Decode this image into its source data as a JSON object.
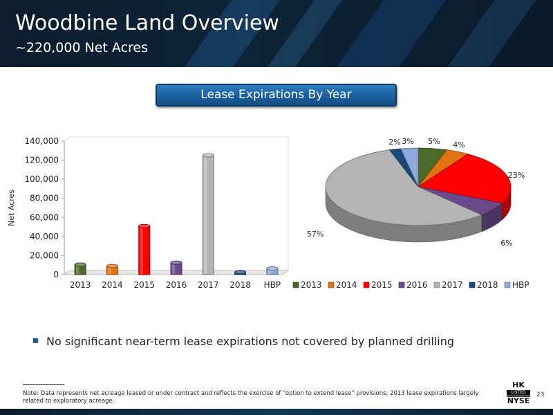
{
  "header": {
    "title": "Woodbine Land Overview",
    "subtitle": "~220,000 Net Acres"
  },
  "banner": {
    "label": "Lease Expirations By Year"
  },
  "chart_data": [
    {
      "type": "bar",
      "categories": [
        "2013",
        "2014",
        "2015",
        "2016",
        "2017",
        "2018",
        "HBP"
      ],
      "values": [
        10500,
        9000,
        51000,
        12500,
        125000,
        2500,
        6500
      ],
      "ylabel": "Net Acres",
      "ylim": [
        0,
        140000
      ],
      "yticks": [
        "0",
        "20,000",
        "40,000",
        "60,000",
        "80,000",
        "100,000",
        "120,000",
        "140,000"
      ],
      "colors": [
        "#4a6a2a",
        "#e0740f",
        "#ff0000",
        "#6a4a8a",
        "#b4b4b4",
        "#1a4a7a",
        "#8faad8"
      ]
    },
    {
      "type": "pie",
      "categories": [
        "2013",
        "2014",
        "2015",
        "2016",
        "2017",
        "2018",
        "HBP"
      ],
      "values": [
        5,
        4,
        23,
        6,
        57,
        2,
        3
      ],
      "labels": [
        "5%",
        "4%",
        "23%",
        "6%",
        "57%",
        "2%",
        "3%"
      ],
      "legend": "bottom",
      "colors": [
        "#4a6a2a",
        "#e0740f",
        "#ff0000",
        "#6a4a8a",
        "#b4b4b4",
        "#1a4a7a",
        "#8faad8"
      ]
    }
  ],
  "bullet": "No significant near-term lease expirations not covered by planned drilling",
  "note": "Note: Data represents net acreage leased or under contract and reflects the exercise of “option to extend lease” provisions; 2013 lease expirations largely related to exploratory acreage.",
  "logo": {
    "top": "HK",
    "middle": "LISTED",
    "bottom": "NYSE"
  },
  "page_number": "23"
}
